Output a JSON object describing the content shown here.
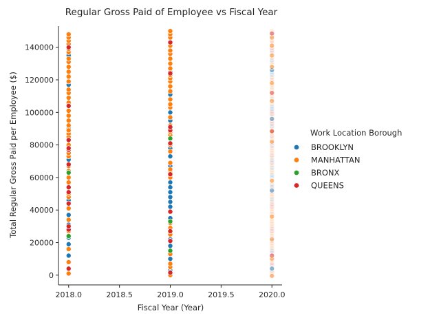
{
  "chart_data": {
    "type": "scatter",
    "title": "Regular Gross Paid of Employee vs Fiscal Year",
    "xlabel": "Fiscal Year (Year)",
    "ylabel": "Total Regular Gross Paid per Employee ($)",
    "xlim": [
      2017.9,
      2020.1
    ],
    "ylim": [
      -6000,
      153000
    ],
    "xticks": [
      2018.0,
      2018.5,
      2019.0,
      2019.5,
      2020.0
    ],
    "xtick_labels": [
      "2018.0",
      "2018.5",
      "2019.0",
      "2019.5",
      "2020.0"
    ],
    "yticks": [
      0,
      20000,
      40000,
      60000,
      80000,
      100000,
      120000,
      140000
    ],
    "ytick_labels": [
      "0",
      "20000",
      "40000",
      "60000",
      "80000",
      "100000",
      "120000",
      "140000"
    ],
    "grid": false,
    "legend": {
      "title": "Work Location Borough",
      "placement": "right",
      "entries": [
        "BROOKLYN",
        "MANHATTAN",
        "BRONX",
        "QUEENS"
      ]
    },
    "series": [
      {
        "name": "BROOKLYN",
        "color": "#1f77b4",
        "points": [
          [
            2018.0,
            12000
          ],
          [
            2018.0,
            19000
          ],
          [
            2018.0,
            23000
          ],
          [
            2018.0,
            31000
          ],
          [
            2018.0,
            37000
          ],
          [
            2018.0,
            46000
          ],
          [
            2018.0,
            71000
          ],
          [
            2018.0,
            90000
          ],
          [
            2018.0,
            117000
          ],
          [
            2018.0,
            135000
          ],
          [
            2019.0,
            3000
          ],
          [
            2019.0,
            10000
          ],
          [
            2019.0,
            18000
          ],
          [
            2019.0,
            22000
          ],
          [
            2019.0,
            35000
          ],
          [
            2019.0,
            39000
          ],
          [
            2019.0,
            42000
          ],
          [
            2019.0,
            45000
          ],
          [
            2019.0,
            48000
          ],
          [
            2019.0,
            51000
          ],
          [
            2019.0,
            54000
          ],
          [
            2019.0,
            57000
          ],
          [
            2019.0,
            67000
          ],
          [
            2019.0,
            73000
          ],
          [
            2019.0,
            78000
          ],
          [
            2019.0,
            95000
          ],
          [
            2019.0,
            100000
          ],
          [
            2019.0,
            111000
          ],
          [
            2019.0,
            125000
          ],
          [
            2020.0,
            4000
          ],
          [
            2020.0,
            52000
          ],
          [
            2020.0,
            96000
          ],
          [
            2020.0,
            126000
          ]
        ]
      },
      {
        "name": "MANHATTAN",
        "color": "#ff7f0e",
        "points": [
          [
            2018.0,
            1000
          ],
          [
            2018.0,
            8000
          ],
          [
            2018.0,
            16000
          ],
          [
            2018.0,
            27000
          ],
          [
            2018.0,
            34000
          ],
          [
            2018.0,
            41000
          ],
          [
            2018.0,
            48000
          ],
          [
            2018.0,
            50000
          ],
          [
            2018.0,
            57000
          ],
          [
            2018.0,
            60000
          ],
          [
            2018.0,
            64000
          ],
          [
            2018.0,
            67000
          ],
          [
            2018.0,
            73000
          ],
          [
            2018.0,
            75000
          ],
          [
            2018.0,
            80000
          ],
          [
            2018.0,
            85000
          ],
          [
            2018.0,
            87000
          ],
          [
            2018.0,
            89000
          ],
          [
            2018.0,
            92000
          ],
          [
            2018.0,
            95000
          ],
          [
            2018.0,
            98000
          ],
          [
            2018.0,
            101000
          ],
          [
            2018.0,
            106000
          ],
          [
            2018.0,
            109000
          ],
          [
            2018.0,
            112000
          ],
          [
            2018.0,
            114000
          ],
          [
            2018.0,
            119000
          ],
          [
            2018.0,
            122000
          ],
          [
            2018.0,
            125000
          ],
          [
            2018.0,
            128000
          ],
          [
            2018.0,
            131000
          ],
          [
            2018.0,
            133000
          ],
          [
            2018.0,
            137000
          ],
          [
            2018.0,
            139000
          ],
          [
            2018.0,
            142000
          ],
          [
            2018.0,
            144000
          ],
          [
            2018.0,
            146000
          ],
          [
            2018.0,
            148000
          ],
          [
            2019.0,
            0
          ],
          [
            2019.0,
            5000
          ],
          [
            2019.0,
            7000
          ],
          [
            2019.0,
            13000
          ],
          [
            2019.0,
            25000
          ],
          [
            2019.0,
            29000
          ],
          [
            2019.0,
            32000
          ],
          [
            2019.0,
            60000
          ],
          [
            2019.0,
            63000
          ],
          [
            2019.0,
            65000
          ],
          [
            2019.0,
            69000
          ],
          [
            2019.0,
            76000
          ],
          [
            2019.0,
            80000
          ],
          [
            2019.0,
            86000
          ],
          [
            2019.0,
            88000
          ],
          [
            2019.0,
            92000
          ],
          [
            2019.0,
            97000
          ],
          [
            2019.0,
            103000
          ],
          [
            2019.0,
            105000
          ],
          [
            2019.0,
            108000
          ],
          [
            2019.0,
            113000
          ],
          [
            2019.0,
            116000
          ],
          [
            2019.0,
            119000
          ],
          [
            2019.0,
            121000
          ],
          [
            2019.0,
            123000
          ],
          [
            2019.0,
            127000
          ],
          [
            2019.0,
            130000
          ],
          [
            2019.0,
            133000
          ],
          [
            2019.0,
            136000
          ],
          [
            2019.0,
            138000
          ],
          [
            2019.0,
            141000
          ],
          [
            2019.0,
            143000
          ],
          [
            2019.0,
            146000
          ],
          [
            2019.0,
            148000
          ],
          [
            2019.0,
            150000
          ],
          [
            2020.0,
            -500
          ],
          [
            2020.0,
            10000
          ],
          [
            2020.0,
            22000
          ],
          [
            2020.0,
            36000
          ],
          [
            2020.0,
            58000
          ],
          [
            2020.0,
            82000
          ],
          [
            2020.0,
            88000
          ],
          [
            2020.0,
            107000
          ],
          [
            2020.0,
            118000
          ],
          [
            2020.0,
            128000
          ],
          [
            2020.0,
            135000
          ],
          [
            2020.0,
            141000
          ],
          [
            2020.0,
            146000
          ]
        ]
      },
      {
        "name": "BRONX",
        "color": "#2ca02c",
        "points": [
          [
            2018.0,
            24000
          ],
          [
            2018.0,
            63000
          ],
          [
            2019.0,
            15000
          ],
          [
            2019.0,
            33000
          ],
          [
            2019.0,
            84000
          ]
        ]
      },
      {
        "name": "QUEENS",
        "color": "#d62728",
        "points": [
          [
            2018.0,
            4000
          ],
          [
            2018.0,
            28000
          ],
          [
            2018.0,
            30000
          ],
          [
            2018.0,
            44000
          ],
          [
            2018.0,
            51000
          ],
          [
            2018.0,
            54000
          ],
          [
            2018.0,
            68000
          ],
          [
            2018.0,
            77000
          ],
          [
            2018.0,
            78000
          ],
          [
            2018.0,
            83000
          ],
          [
            2018.0,
            104000
          ],
          [
            2018.0,
            140000
          ],
          [
            2019.0,
            1500
          ],
          [
            2019.0,
            21000
          ],
          [
            2019.0,
            27000
          ],
          [
            2019.0,
            39000
          ],
          [
            2019.0,
            62000
          ],
          [
            2019.0,
            81000
          ],
          [
            2019.0,
            89000
          ],
          [
            2019.0,
            91000
          ],
          [
            2019.0,
            124000
          ],
          [
            2019.0,
            143000
          ],
          [
            2020.0,
            12000
          ],
          [
            2020.0,
            88500
          ],
          [
            2020.0,
            112000
          ],
          [
            2020.0,
            148500
          ]
        ]
      }
    ]
  }
}
